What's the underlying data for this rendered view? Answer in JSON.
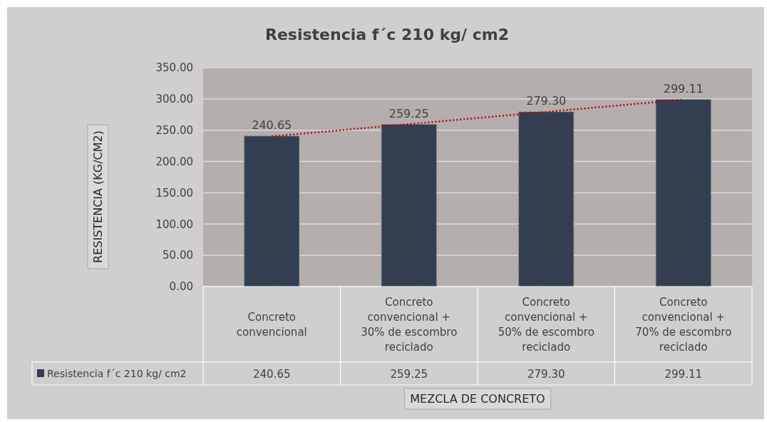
{
  "chart_data": {
    "type": "bar",
    "title": "Resistencia f´c 210 kg/ cm2",
    "xlabel": "MEZCLA DE CONCRETO",
    "ylabel": "RESISTENCIA (KG/CM2)",
    "categories": [
      "Concreto convencional",
      "Concreto convencional + 30% de escombro reciclado",
      "Concreto convencional + 50% de escombro reciclado",
      "Concreto convencional + 70% de escombro reciclado"
    ],
    "series": [
      {
        "name": "Resistencia f´c 210 kg/ cm2",
        "color": "#333f50",
        "values": [
          240.65,
          259.25,
          279.3,
          299.11
        ],
        "value_labels": [
          "240.65",
          "259.25",
          "279.30",
          "299.11"
        ]
      },
      {
        "type": "line",
        "color": "#c00000",
        "line_style": "dotted",
        "marker": "none",
        "values": [
          240.3,
          259.8,
          279.4,
          298.9
        ]
      }
    ],
    "ylim": [
      0,
      350
    ],
    "yticks": [
      {
        "value": 0,
        "label": "0.00"
      },
      {
        "value": 50,
        "label": "50.00"
      },
      {
        "value": 100,
        "label": "100.00"
      },
      {
        "value": 150,
        "label": "150.00"
      },
      {
        "value": 200,
        "label": "200.00"
      },
      {
        "value": 250,
        "label": "250.00"
      },
      {
        "value": 300,
        "label": "300.00"
      },
      {
        "value": 350,
        "label": "350.00"
      }
    ],
    "grid": "y",
    "legend": "bottom"
  }
}
